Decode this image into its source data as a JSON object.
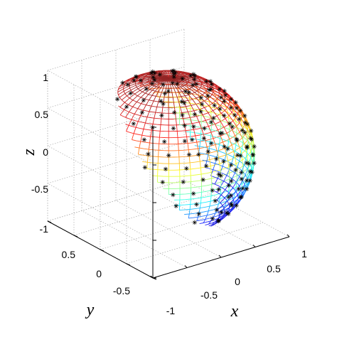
{
  "chart_data": {
    "type": "surface3d",
    "surface": "unit sphere mesh colored by z (jet colormap)",
    "xlabel": "x",
    "ylabel": "y",
    "zlabel": "z",
    "xlim": [
      -1,
      1
    ],
    "ylim": [
      -1,
      1
    ],
    "zlim": [
      -1,
      1
    ],
    "x_ticks": [
      "-1",
      "-0.5",
      "0",
      "0.5",
      "1"
    ],
    "y_ticks": [
      "-0.5",
      "0",
      "0.5"
    ],
    "z_ticks": [
      "-1",
      "-0.5",
      "0",
      "0.5",
      "1"
    ],
    "grid": true,
    "box": "dotted 3D grid box",
    "markers": "black asterisk points distributed on the sphere surface",
    "colormap": [
      "#00008f",
      "#0000ff",
      "#00ffff",
      "#ffff00",
      "#ff0000",
      "#800000"
    ]
  }
}
